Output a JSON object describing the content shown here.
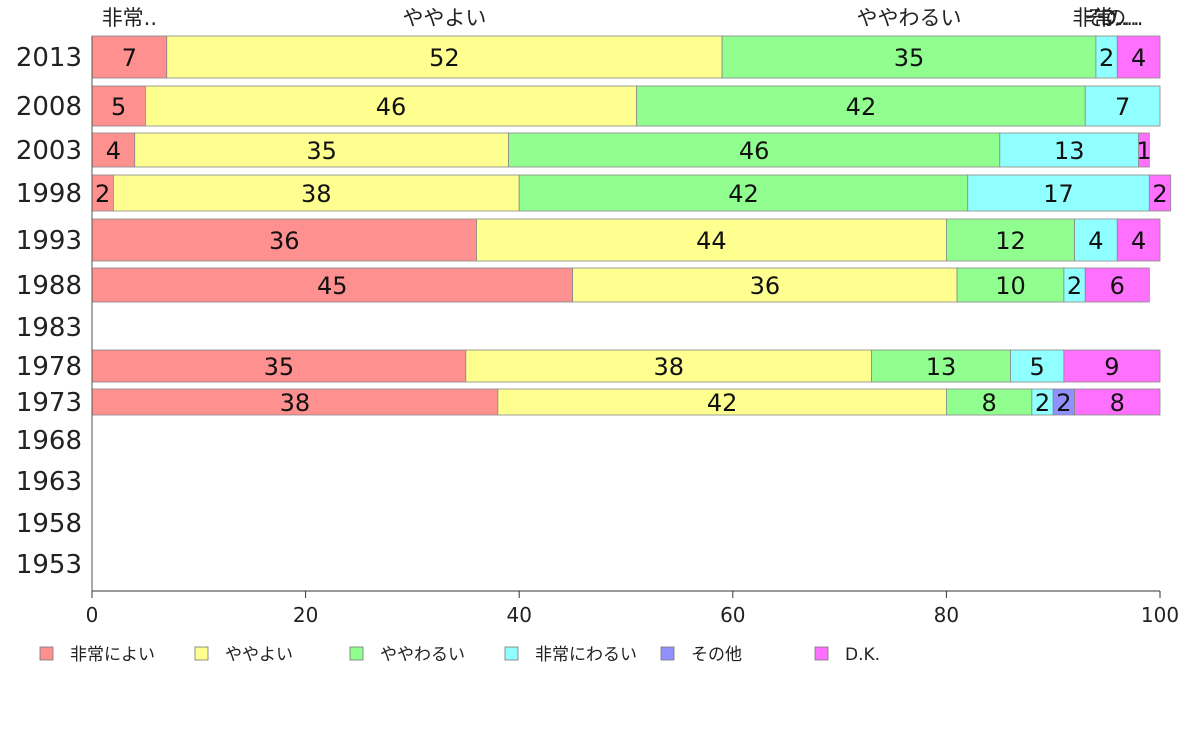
{
  "chart_data": {
    "type": "bar",
    "orientation": "horizontal",
    "stacked": true,
    "categories": [
      "2013",
      "2008",
      "2003",
      "1998",
      "1993",
      "1988",
      "1983",
      "1978",
      "1973",
      "1968",
      "1963",
      "1958",
      "1953"
    ],
    "series": [
      {
        "name": "非常によい",
        "color": "#ff9090",
        "values": [
          7,
          5,
          4,
          2,
          36,
          45,
          null,
          35,
          38,
          null,
          null,
          null,
          null
        ]
      },
      {
        "name": "ややよい",
        "color": "#ffff90",
        "values": [
          52,
          46,
          35,
          38,
          44,
          36,
          null,
          38,
          42,
          null,
          null,
          null,
          null
        ]
      },
      {
        "name": "ややわるい",
        "color": "#90ff90",
        "values": [
          35,
          42,
          46,
          42,
          12,
          10,
          null,
          13,
          8,
          null,
          null,
          null,
          null
        ]
      },
      {
        "name": "非常にわるい",
        "color": "#90ffff",
        "values": [
          2,
          7,
          13,
          17,
          4,
          2,
          null,
          5,
          2,
          null,
          null,
          null,
          null
        ]
      },
      {
        "name": "その他",
        "color": "#9090ff",
        "values": [
          0,
          0,
          0,
          0,
          0,
          0,
          null,
          0,
          2,
          null,
          null,
          null,
          null
        ]
      },
      {
        "name": "D.K.",
        "color": "#ff70ff",
        "values": [
          4,
          0,
          1,
          2,
          4,
          6,
          null,
          9,
          8,
          null,
          null,
          null,
          null
        ]
      }
    ],
    "top_labels": [
      "非常..",
      "ややよい",
      "ややわるい",
      "非常..",
      "その..",
      "D...."
    ],
    "xlim": [
      0,
      100
    ],
    "xticks": [
      0,
      20,
      40,
      60,
      80,
      100
    ],
    "legend_position": "bottom"
  }
}
